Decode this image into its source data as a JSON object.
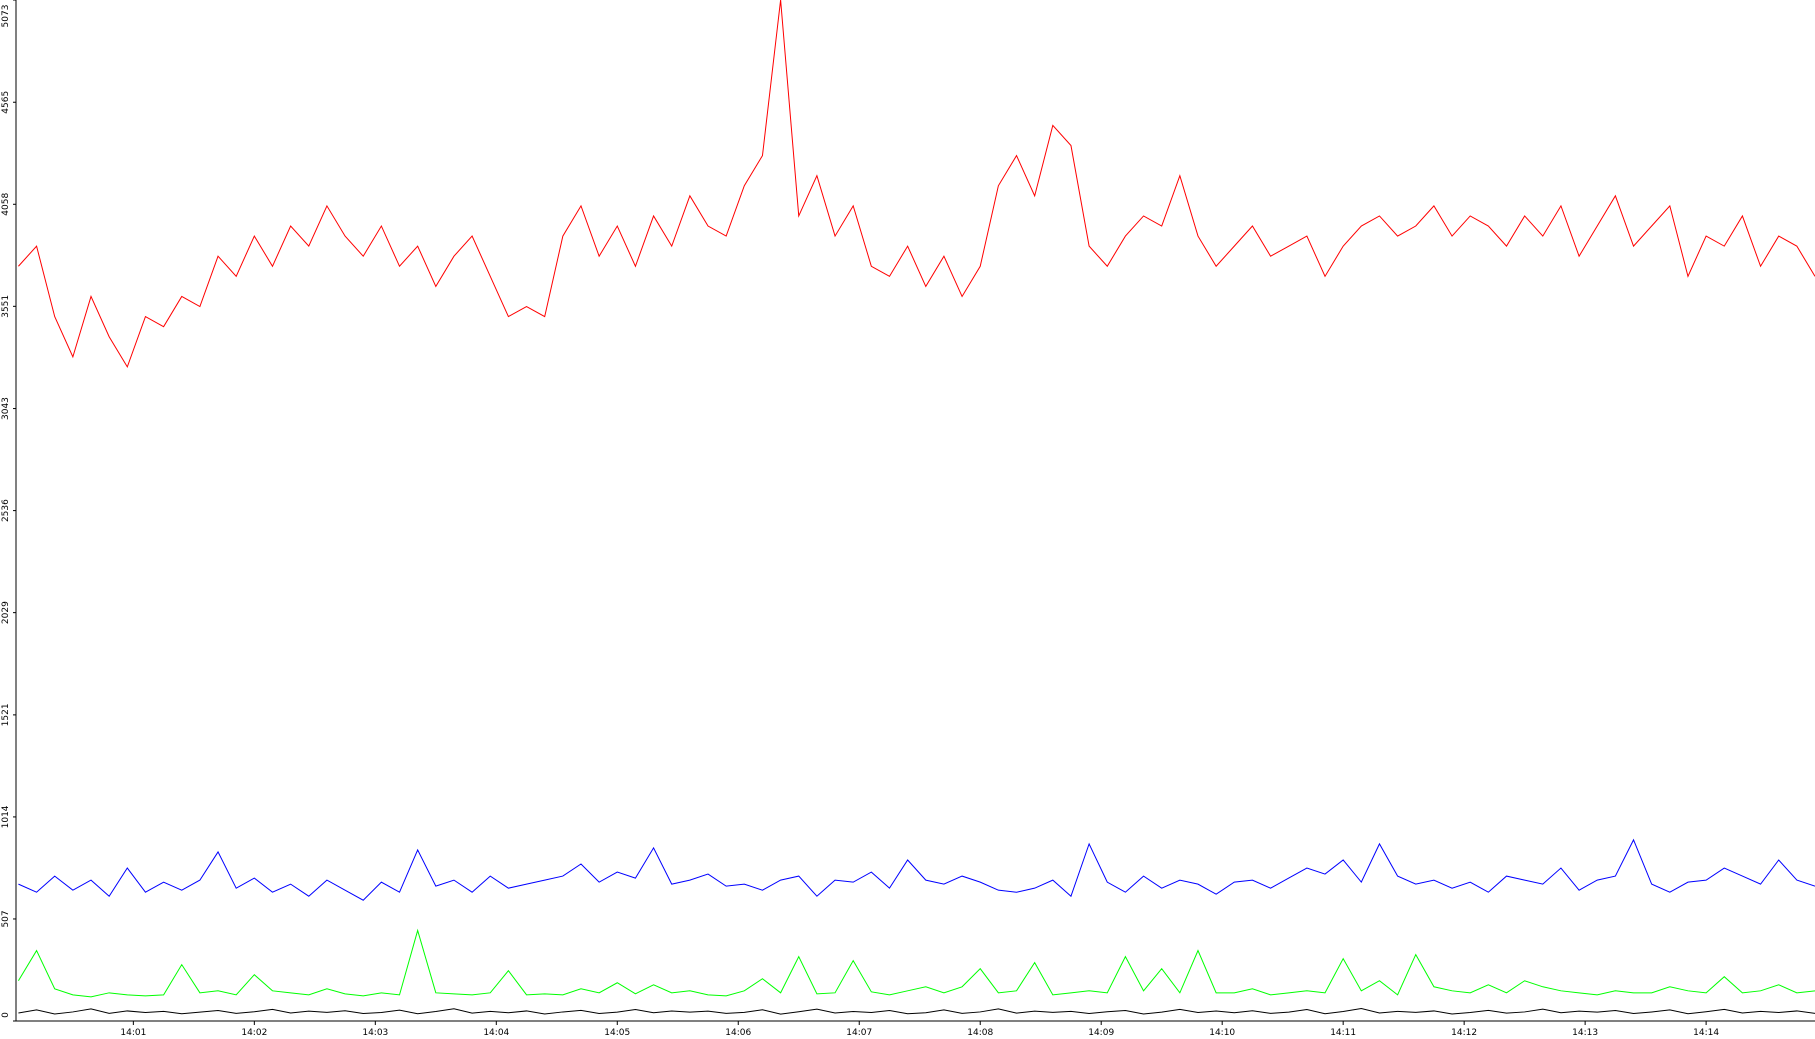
{
  "chart_data": {
    "type": "line",
    "x": [
      0.05,
      0.2,
      0.35,
      0.5,
      0.65,
      0.8,
      0.95,
      1.1,
      1.25,
      1.4,
      1.55,
      1.7,
      1.85,
      2,
      2.15,
      2.3,
      2.45,
      2.6,
      2.75,
      2.9,
      3.05,
      3.2,
      3.35,
      3.5,
      3.65,
      3.8,
      3.95,
      4.1,
      4.25,
      4.4,
      4.55,
      4.7,
      4.85,
      5,
      5.15,
      5.3,
      5.45,
      5.6,
      5.75,
      5.9,
      6.05,
      6.2,
      6.35,
      6.5,
      6.65,
      6.8,
      6.95,
      7.1,
      7.25,
      7.4,
      7.55,
      7.7,
      7.85,
      8,
      8.15,
      8.3,
      8.45,
      8.6,
      8.75,
      8.9,
      9.05,
      9.2,
      9.35,
      9.5,
      9.65,
      9.8,
      9.95,
      10.1,
      10.25,
      10.4,
      10.55,
      10.7,
      10.85,
      11,
      11.15,
      11.3,
      11.45,
      11.6,
      11.75,
      11.9,
      12.05,
      12.2,
      12.35,
      12.5,
      12.65,
      12.8,
      12.95,
      13.1,
      13.25,
      13.4,
      13.55,
      13.7,
      13.85,
      14,
      14.15,
      14.3,
      14.45,
      14.6,
      14.75,
      14.9
    ],
    "series": [
      {
        "name": "red",
        "color": "#ff0000",
        "values": [
          3750,
          3850,
          3500,
          3300,
          3600,
          3400,
          3250,
          3500,
          3450,
          3600,
          3550,
          3800,
          3700,
          3900,
          3750,
          3950,
          3850,
          4050,
          3900,
          3800,
          3950,
          3750,
          3850,
          3650,
          3800,
          3900,
          3700,
          3500,
          3550,
          3500,
          3900,
          4050,
          3800,
          3950,
          3750,
          4000,
          3850,
          4100,
          3950,
          3900,
          4150,
          4300,
          5073,
          4000,
          4200,
          3900,
          4050,
          3750,
          3700,
          3850,
          3650,
          3800,
          3600,
          3750,
          4150,
          4300,
          4100,
          4450,
          4350,
          3850,
          3750,
          3900,
          4000,
          3950,
          4200,
          3900,
          3750,
          3850,
          3950,
          3800,
          3850,
          3900,
          3700,
          3850,
          3950,
          4000,
          3900,
          3950,
          4050,
          3900,
          4000,
          3950,
          3850,
          4000,
          3900,
          4050,
          3800,
          3950,
          4100,
          3850,
          3950,
          4050,
          3700,
          3900,
          3850,
          4000,
          3750,
          3900,
          3850,
          3700
        ]
      },
      {
        "name": "blue",
        "color": "#0000ff",
        "values": [
          680,
          640,
          720,
          650,
          700,
          620,
          760,
          640,
          690,
          650,
          700,
          840,
          660,
          710,
          640,
          680,
          620,
          700,
          650,
          600,
          690,
          640,
          850,
          670,
          700,
          640,
          720,
          660,
          680,
          700,
          720,
          780,
          690,
          740,
          710,
          860,
          680,
          700,
          730,
          670,
          680,
          650,
          700,
          720,
          620,
          700,
          690,
          740,
          660,
          800,
          700,
          680,
          720,
          690,
          650,
          640,
          660,
          700,
          620,
          880,
          690,
          640,
          720,
          660,
          700,
          680,
          630,
          690,
          700,
          660,
          710,
          760,
          730,
          800,
          690,
          880,
          720,
          680,
          700,
          660,
          690,
          640,
          720,
          700,
          680,
          760,
          650,
          700,
          720,
          900,
          680,
          640,
          690,
          700,
          760,
          720,
          680,
          800,
          700,
          670
        ]
      },
      {
        "name": "green",
        "color": "#00ff00",
        "values": [
          200,
          350,
          160,
          130,
          120,
          140,
          130,
          125,
          130,
          280,
          140,
          150,
          130,
          230,
          150,
          140,
          130,
          160,
          135,
          125,
          140,
          130,
          450,
          140,
          135,
          130,
          140,
          250,
          130,
          135,
          130,
          160,
          140,
          190,
          135,
          180,
          140,
          150,
          130,
          125,
          150,
          210,
          140,
          320,
          135,
          140,
          300,
          145,
          130,
          150,
          170,
          140,
          170,
          260,
          140,
          150,
          290,
          130,
          140,
          150,
          140,
          320,
          150,
          260,
          140,
          350,
          140,
          140,
          160,
          130,
          140,
          150,
          140,
          310,
          150,
          200,
          130,
          330,
          170,
          150,
          140,
          180,
          140,
          200,
          170,
          150,
          140,
          130,
          150,
          140,
          140,
          170,
          150,
          140,
          220,
          140,
          150,
          180,
          140,
          150
        ]
      },
      {
        "name": "black",
        "color": "#000000",
        "values": [
          40,
          55,
          35,
          45,
          60,
          38,
          50,
          42,
          48,
          36,
          44,
          52,
          38,
          46,
          58,
          40,
          49,
          43,
          51,
          37,
          42,
          54,
          36,
          47,
          61,
          39,
          48,
          41,
          50,
          35,
          45,
          53,
          37,
          44,
          57,
          41,
          50,
          44,
          49,
          38,
          43,
          56,
          34,
          46,
          59,
          40,
          47,
          42,
          52,
          36,
          41,
          55,
          38,
          45,
          60,
          39,
          49,
          43,
          48,
          37,
          46,
          52,
          35,
          44,
          58,
          42,
          50,
          41,
          51,
          38,
          44,
          57,
          36,
          47,
          62,
          40,
          48,
          43,
          50,
          35,
          42,
          53,
          39,
          45,
          59,
          41,
          49,
          44,
          52,
          37,
          45,
          55,
          36,
          46,
          58,
          40,
          48,
          42,
          50,
          38
        ]
      }
    ],
    "xlim": [
      0.03,
      14.9
    ],
    "xticks": [
      {
        "value": 1,
        "label": "14:01"
      },
      {
        "value": 2,
        "label": "14:02"
      },
      {
        "value": 3,
        "label": "14:03"
      },
      {
        "value": 4,
        "label": "14:04"
      },
      {
        "value": 5,
        "label": "14:05"
      },
      {
        "value": 6,
        "label": "14:06"
      },
      {
        "value": 7,
        "label": "14:07"
      },
      {
        "value": 8,
        "label": "14:08"
      },
      {
        "value": 9,
        "label": "14:09"
      },
      {
        "value": 10,
        "label": "14:10"
      },
      {
        "value": 11,
        "label": "14:11"
      },
      {
        "value": 12,
        "label": "14:12"
      },
      {
        "value": 13,
        "label": "14:13"
      },
      {
        "value": 14,
        "label": "14:14"
      }
    ],
    "ylim": [
      0,
      5073
    ],
    "yticks": [
      0,
      507,
      1014,
      1521,
      2029,
      2536,
      3043,
      3551,
      4058,
      4565,
      5073
    ]
  }
}
